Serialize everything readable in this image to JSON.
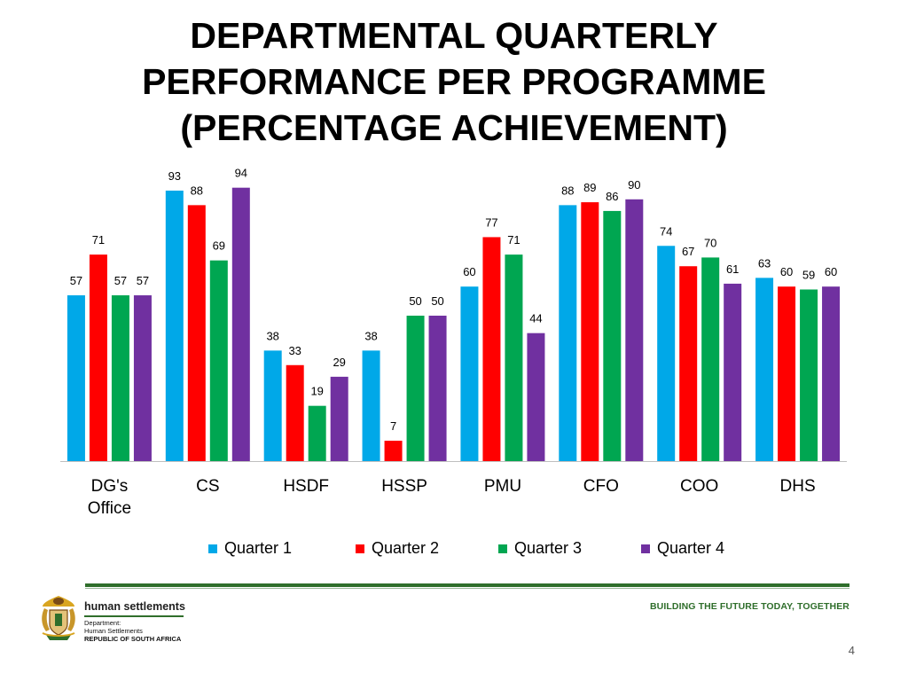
{
  "slide": {
    "title_lines": [
      "DEPARTMENTAL  QUARTERLY",
      "PERFORMANCE PER PROGRAMME",
      "(PERCENTAGE ACHIEVEMENT)"
    ],
    "slide_number": "4"
  },
  "chart_data": {
    "type": "bar",
    "categories": [
      "DG's Office",
      "CS",
      "HSDF",
      "HSSP",
      "PMU",
      "CFO",
      "COO",
      "DHS"
    ],
    "series": [
      {
        "name": "Quarter 1",
        "color": "#00a8e8",
        "values": [
          57,
          93,
          38,
          38,
          60,
          88,
          74,
          63
        ]
      },
      {
        "name": "Quarter 2",
        "color": "#ff0000",
        "values": [
          71,
          88,
          33,
          7,
          77,
          89,
          67,
          60
        ]
      },
      {
        "name": "Quarter 3",
        "color": "#00a651",
        "values": [
          57,
          69,
          19,
          50,
          71,
          86,
          70,
          59
        ]
      },
      {
        "name": "Quarter 4",
        "color": "#7030a0",
        "values": [
          57,
          94,
          29,
          50,
          44,
          90,
          61,
          60
        ]
      }
    ],
    "ylim": [
      0,
      100
    ],
    "grid": false,
    "data_labels": true,
    "legend_position": "bottom"
  },
  "footer": {
    "brand_name": "human settlements",
    "brand_line1": "Department:",
    "brand_line2": "Human Settlements",
    "brand_line3": "REPUBLIC OF SOUTH AFRICA",
    "tagline": "BUILDING THE FUTURE TODAY, TOGETHER",
    "emblem_icon": "coat-of-arms-icon"
  }
}
